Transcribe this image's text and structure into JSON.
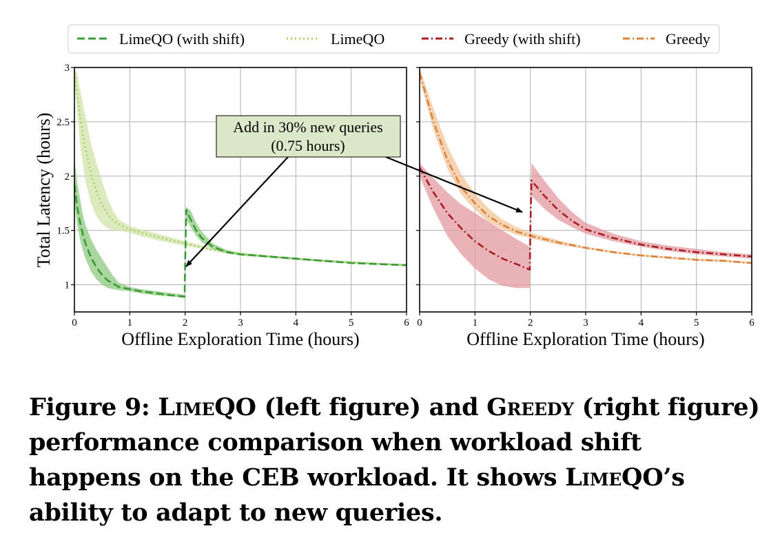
{
  "chart_data": {
    "type": "line",
    "legend": {
      "placement": "top",
      "entries": [
        "LimeQO (with shift)",
        "LimeQO",
        "Greedy (with shift)",
        "Greedy"
      ]
    },
    "ylabel": "Total Latency (hours)",
    "annotation": {
      "line1": "Add in 30% new queries",
      "line2": "(0.75 hours)"
    },
    "ylim": [
      0.75,
      3.0
    ],
    "yticks": [
      "1",
      "1.5",
      "2",
      "2.5",
      "3"
    ],
    "grid": true,
    "colors": {
      "limeqo_shift": "#3a9a35",
      "limeqo": "#a9cd68",
      "limeqo_shift_band": "#8cc97f",
      "limeqo_band": "#cfe4a8",
      "greedy_shift": "#aa1c24",
      "greedy": "#d9823a",
      "greedy_shift_band": "#e39aa0",
      "greedy_band": "#f2c499",
      "annotation_box": "#dbe8c9"
    },
    "panels": [
      {
        "xlabel": "Offline Exploration Time (hours)",
        "xlim": [
          0,
          6
        ],
        "xticks": [
          "0",
          "1",
          "2",
          "3",
          "4",
          "5",
          "6"
        ],
        "series": [
          {
            "name": "LimeQO",
            "style": "dotted",
            "color": "#a9cd68",
            "x": [
              0,
              0.05,
              0.1,
              0.2,
              0.3,
              0.4,
              0.5,
              0.6,
              0.7,
              0.8,
              1.0,
              1.2,
              1.5,
              2.0,
              2.5,
              3.0,
              3.5,
              4.0,
              4.5,
              5.0,
              5.5,
              6.0
            ],
            "y": [
              2.95,
              2.75,
              2.55,
              2.25,
              2.02,
              1.86,
              1.74,
              1.65,
              1.59,
              1.56,
              1.51,
              1.48,
              1.44,
              1.38,
              1.32,
              1.28,
              1.26,
              1.24,
              1.22,
              1.21,
              1.195,
              1.18
            ],
            "band_low": [
              2.85,
              2.6,
              2.3,
              1.95,
              1.75,
              1.63,
              1.56,
              1.52,
              1.5,
              1.5,
              1.48,
              1.45,
              1.41,
              1.36,
              1.31,
              1.27,
              1.25,
              1.23,
              1.215,
              1.2,
              1.185,
              1.17
            ],
            "band_high": [
              3.0,
              2.95,
              2.8,
              2.55,
              2.3,
              2.12,
              1.95,
              1.8,
              1.68,
              1.6,
              1.54,
              1.51,
              1.47,
              1.4,
              1.34,
              1.3,
              1.27,
              1.25,
              1.23,
              1.215,
              1.2,
              1.19
            ]
          },
          {
            "name": "LimeQO (with shift)",
            "style": "dashed",
            "color": "#3a9a35",
            "x": [
              0,
              0.05,
              0.1,
              0.15,
              0.2,
              0.3,
              0.4,
              0.5,
              0.6,
              0.7,
              0.8,
              1.0,
              1.2,
              1.5,
              1.8,
              1.99,
              2.0,
              2.02,
              2.1,
              2.2,
              2.3,
              2.5,
              2.75,
              3.0,
              3.5,
              4.0,
              4.5,
              5.0,
              5.5,
              6.0
            ],
            "y": [
              1.92,
              1.72,
              1.58,
              1.47,
              1.38,
              1.25,
              1.16,
              1.09,
              1.04,
              1.01,
              0.98,
              0.96,
              0.94,
              0.92,
              0.9,
              0.89,
              1.2,
              1.69,
              1.6,
              1.5,
              1.43,
              1.35,
              1.3,
              1.28,
              1.26,
              1.24,
              1.22,
              1.2,
              1.19,
              1.18
            ],
            "band_low": [
              1.75,
              1.55,
              1.42,
              1.32,
              1.24,
              1.12,
              1.05,
              1.0,
              0.97,
              0.96,
              0.95,
              0.94,
              0.92,
              0.9,
              0.89,
              0.88,
              1.2,
              1.6,
              1.53,
              1.45,
              1.39,
              1.33,
              1.29,
              1.27,
              1.25,
              1.23,
              1.21,
              1.195,
              1.185,
              1.175
            ],
            "band_high": [
              2.15,
              1.95,
              1.8,
              1.65,
              1.55,
              1.42,
              1.32,
              1.24,
              1.16,
              1.08,
              1.02,
              0.98,
              0.96,
              0.94,
              0.92,
              0.91,
              1.25,
              1.72,
              1.68,
              1.57,
              1.49,
              1.38,
              1.32,
              1.29,
              1.27,
              1.25,
              1.23,
              1.21,
              1.2,
              1.19
            ]
          }
        ]
      },
      {
        "xlabel": "Offline Exploration Time (hours)",
        "xlim": [
          0,
          6
        ],
        "xticks": [
          "0",
          "1",
          "2",
          "3",
          "4",
          "5",
          "6"
        ],
        "series": [
          {
            "name": "Greedy",
            "style": "dashdot",
            "color": "#d9823a",
            "x": [
              0,
              0.25,
              0.5,
              0.75,
              1.0,
              1.25,
              1.5,
              1.75,
              2.0,
              2.5,
              3.0,
              3.5,
              4.0,
              4.5,
              5.0,
              5.5,
              6.0
            ],
            "y": [
              2.95,
              2.5,
              2.15,
              1.9,
              1.75,
              1.63,
              1.55,
              1.49,
              1.45,
              1.39,
              1.34,
              1.3,
              1.27,
              1.25,
              1.23,
              1.22,
              1.2
            ],
            "band_low": [
              2.9,
              2.42,
              2.07,
              1.83,
              1.69,
              1.58,
              1.51,
              1.46,
              1.43,
              1.37,
              1.33,
              1.29,
              1.26,
              1.24,
              1.22,
              1.21,
              1.19
            ],
            "band_high": [
              3.0,
              2.62,
              2.28,
              2.02,
              1.84,
              1.7,
              1.6,
              1.53,
              1.48,
              1.41,
              1.35,
              1.31,
              1.28,
              1.26,
              1.24,
              1.23,
              1.21
            ]
          },
          {
            "name": "Greedy (with shift)",
            "style": "dashdot",
            "color": "#aa1c24",
            "x": [
              0,
              0.25,
              0.5,
              0.75,
              1.0,
              1.25,
              1.5,
              1.75,
              1.99,
              2.0,
              2.02,
              2.25,
              2.5,
              2.75,
              3.0,
              3.5,
              4.0,
              4.5,
              5.0,
              5.5,
              6.0
            ],
            "y": [
              2.08,
              1.85,
              1.66,
              1.52,
              1.4,
              1.31,
              1.24,
              1.19,
              1.14,
              1.5,
              1.96,
              1.82,
              1.69,
              1.59,
              1.51,
              1.43,
              1.37,
              1.33,
              1.3,
              1.28,
              1.26
            ],
            "band_low": [
              2.0,
              1.7,
              1.45,
              1.28,
              1.15,
              1.05,
              0.99,
              0.97,
              0.97,
              1.5,
              1.82,
              1.7,
              1.6,
              1.53,
              1.47,
              1.4,
              1.35,
              1.31,
              1.28,
              1.26,
              1.24
            ],
            "band_high": [
              2.12,
              1.98,
              1.85,
              1.74,
              1.66,
              1.58,
              1.5,
              1.42,
              1.35,
              1.6,
              2.12,
              1.96,
              1.8,
              1.67,
              1.57,
              1.47,
              1.4,
              1.36,
              1.33,
              1.3,
              1.28
            ]
          }
        ]
      }
    ]
  },
  "caption": {
    "part1": "Figure 9: ",
    "name1": "LimeQO",
    "part2": " (left figure) and ",
    "name2": "Greedy",
    "part3": " (right figure) performance comparison when workload shift happens on the CEB workload. It shows ",
    "name3": "LimeQO",
    "part4": "’s ability to adapt to new queries."
  }
}
